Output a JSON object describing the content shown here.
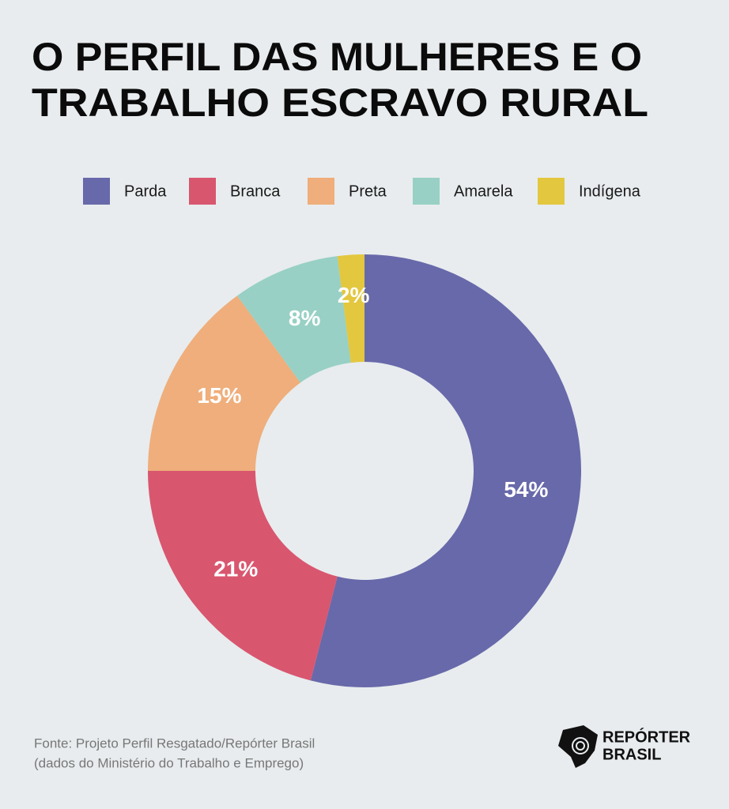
{
  "chart_data": {
    "type": "donut",
    "title": [
      "O PERFIL DAS MULHERES E O",
      "TRABALHO ESCRAVO RURAL"
    ],
    "categories": [
      "Parda",
      "Branca",
      "Preta",
      "Amarela",
      "Indígena"
    ],
    "values": [
      54,
      21,
      15,
      8,
      2
    ],
    "value_labels": [
      "54%",
      "21%",
      "15%",
      "8%",
      "2%"
    ],
    "colors": [
      "#6869aa",
      "#d9566f",
      "#efae7b",
      "#98d0c5",
      "#e3c73f"
    ],
    "source": [
      "Fonte: Projeto Perfil Resgatado/Repórter Brasil",
      "(dados do Ministério do Trabalho e Emprego)"
    ],
    "logo": [
      "REPÓRTER",
      "BRASIL"
    ]
  }
}
